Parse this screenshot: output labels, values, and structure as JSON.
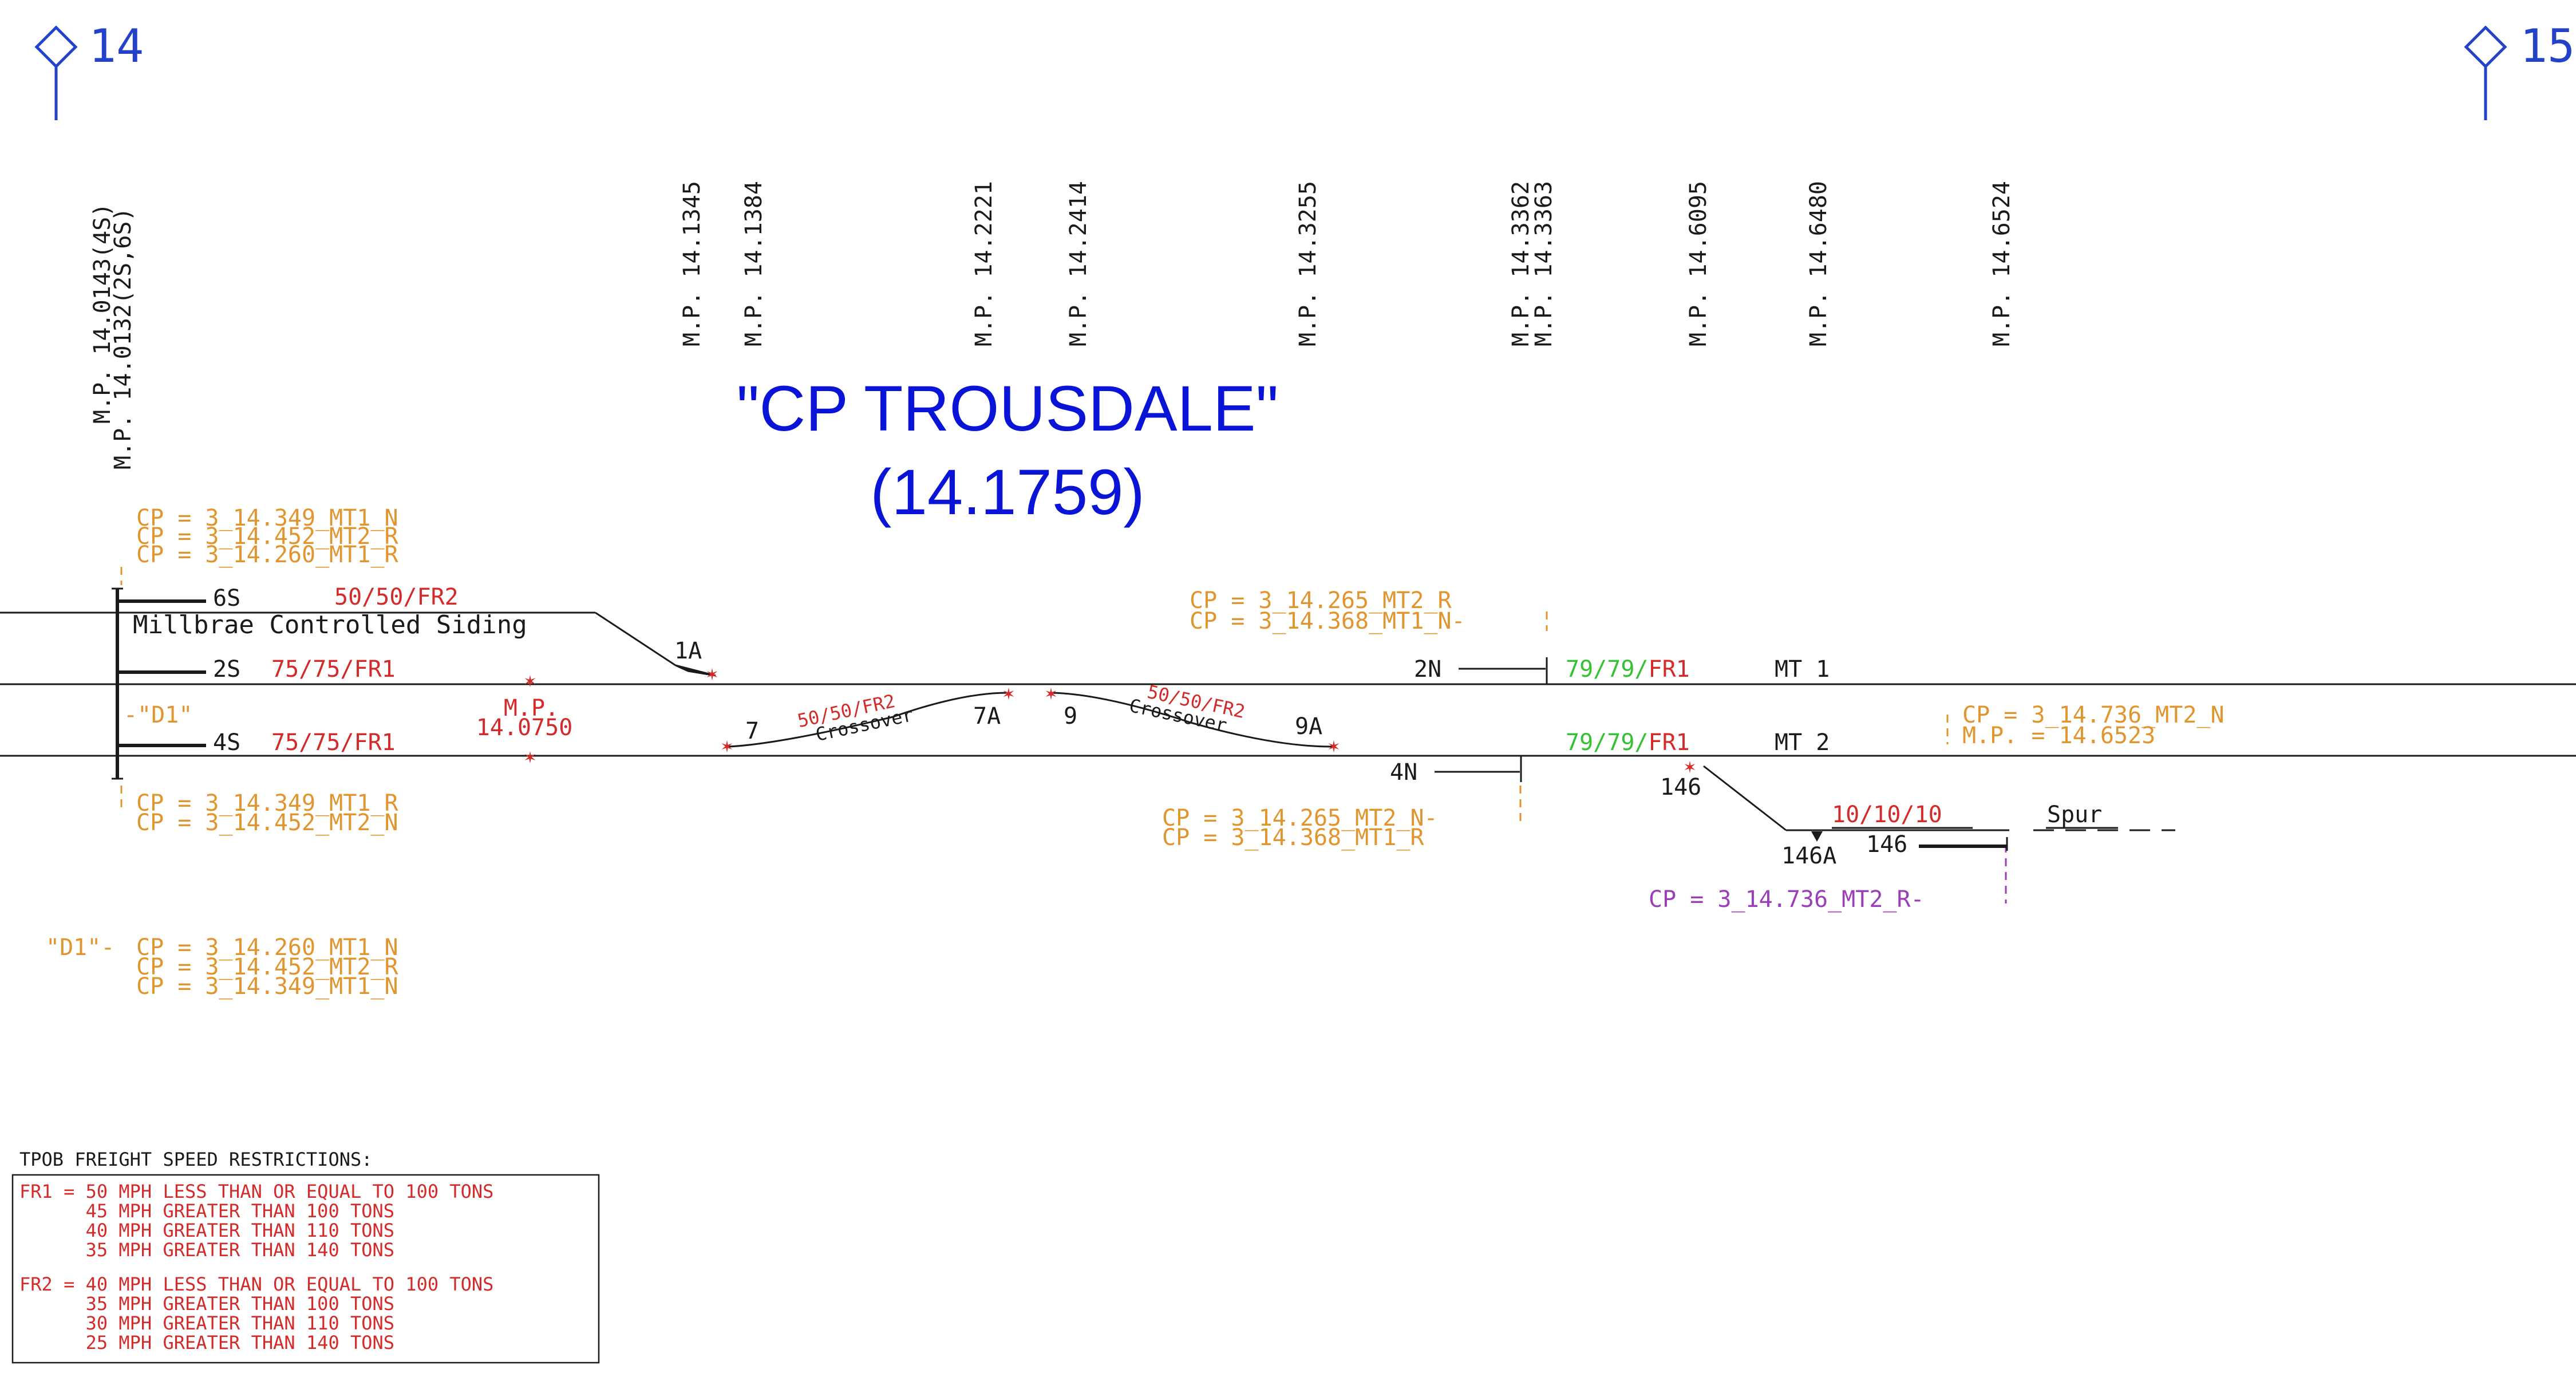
{
  "mileposts": {
    "left_num": "14",
    "right_num": "15",
    "vertical": [
      "M.P. 14.0143(4S)",
      "M.P. 14.0132(2S,6S)",
      "M.P. 14.1345",
      "M.P. 14.1384",
      "M.P. 14.2221",
      "M.P. 14.2414",
      "M.P. 14.3255",
      "M.P. 14.3362",
      "M.P. 14.3363",
      "M.P. 14.6095",
      "M.P. 14.6480",
      "M.P. 14.6524"
    ]
  },
  "title": {
    "name": "\"CP TROUSDALE\"",
    "milepost": "(14.1759)"
  },
  "cp_left_top": [
    "CP = 3_14.349_MT1_N",
    "CP = 3_14.452_MT2_R",
    "CP = 3_14.260_MT1_R"
  ],
  "cp_left_bottom": [
    "CP = 3_14.349_MT1_R",
    "CP = 3_14.452_MT2_N"
  ],
  "d1_note": {
    "label": "\"D1\"-",
    "lines": [
      "CP = 3_14.260_MT1_N",
      "CP = 3_14.452_MT2_R",
      "CP = 3_14.349_MT1_N"
    ]
  },
  "cp_mid_top": [
    "CP = 3_14.265_MT2_R",
    "CP = 3_14.368_MT1_N-"
  ],
  "cp_mid_bottom": [
    "CP = 3_14.265_MT2_N-",
    "CP = 3_14.368_MT1_R"
  ],
  "cp_right": [
    "CP = 3_14.736_MT2_N",
    "M.P. = 14.6523"
  ],
  "cp_spur": "CP = 3_14.736_MT2_R-",
  "signals": {
    "s6": "6S",
    "s2": "2S",
    "s4": "4S",
    "n2": "2N",
    "n4": "4N",
    "d1": "-\"D1\"",
    "s146": "146"
  },
  "speeds": {
    "siding": "50/50/FR2",
    "s2": "75/75/FR1",
    "s4": "75/75/FR1",
    "mt1": {
      "a": "79/79/",
      "b": "FR1"
    },
    "mt2": {
      "a": "79/79/",
      "b": "FR1"
    },
    "xover_left": "50/50/FR2",
    "xover_right": "50/50/FR2",
    "spur": "10/10/10"
  },
  "tracks": {
    "siding_name": "Millbrae Controlled Siding",
    "mt1": "MT 1",
    "mt2": "MT 2",
    "spur": "Spur",
    "crossover": "Crossover"
  },
  "switches": {
    "sw1a": "1A",
    "sw7": "7",
    "sw7a": "7A",
    "sw9": "9",
    "sw9a": "9A",
    "sw146": "146",
    "sw146a": "146A"
  },
  "mp_marker": {
    "label": "M.P.",
    "value": "14.0750"
  },
  "legend": {
    "title": "TPOB FREIGHT SPEED RESTRICTIONS:",
    "fr1": [
      "FR1 = 50 MPH LESS THAN OR EQUAL TO 100 TONS",
      "      45 MPH GREATER THAN 100 TONS",
      "      40 MPH GREATER THAN 110 TONS",
      "      35 MPH GREATER THAN 140 TONS"
    ],
    "fr2": [
      "FR2 = 40 MPH LESS THAN OR EQUAL TO 100 TONS",
      "      35 MPH GREATER THAN 100 TONS",
      "      30 MPH GREATER THAN 110 TONS",
      "      25 MPH GREATER THAN 140 TONS"
    ]
  },
  "colors": {
    "black": "#1a1a1a",
    "red": "#d42a2a",
    "orange": "#e1952f",
    "green": "#34c134",
    "purple": "#9b3fb8",
    "blue": "#2342c8",
    "title_blue": "#0a14d6"
  }
}
